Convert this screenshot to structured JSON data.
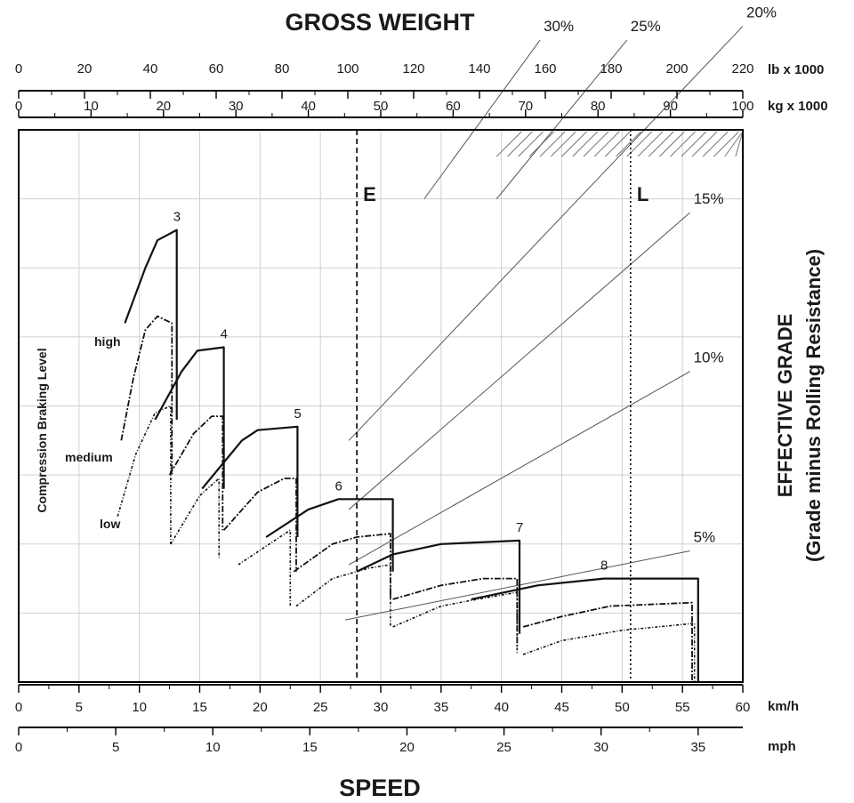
{
  "chart_data": {
    "type": "line",
    "title": "GROSS WEIGHT",
    "xlabel": "SPEED",
    "ylabel": "EFFECTIVE GRADE",
    "ylabel_sub": "(Grade minus Rolling Resistance)",
    "level_axis_label": "Compression Braking Level",
    "axes": {
      "weight_lb": {
        "unit": "lb x 1000",
        "range": [
          0,
          220
        ],
        "ticks": [
          0,
          20,
          40,
          60,
          80,
          100,
          120,
          140,
          160,
          180,
          200,
          220
        ]
      },
      "weight_kg": {
        "unit": "kg x 1000",
        "range": [
          0,
          100
        ],
        "ticks": [
          0,
          10,
          20,
          30,
          40,
          50,
          60,
          70,
          80,
          90,
          100
        ]
      },
      "speed_kmh": {
        "unit": "km/h",
        "range": [
          0,
          60
        ],
        "ticks": [
          0,
          5,
          10,
          15,
          20,
          25,
          30,
          35,
          40,
          45,
          50,
          55,
          60
        ]
      },
      "speed_mph": {
        "unit": "mph",
        "range": [
          0,
          37.3
        ],
        "ticks": [
          0,
          5,
          10,
          15,
          20,
          25,
          30,
          35
        ]
      }
    },
    "grid": true,
    "reference_lines": [
      {
        "label": "E",
        "weight_kg": 46.7,
        "style": "dashed"
      },
      {
        "label": "L",
        "weight_kg": 84.5,
        "style": "dotted"
      }
    ],
    "grade_lines": [
      {
        "label": "30%",
        "from": [
          56,
          70
        ],
        "to": [
          72,
          93
        ]
      },
      {
        "label": "25%",
        "from": [
          66,
          70
        ],
        "to": [
          84,
          93
        ]
      },
      {
        "label": "20%",
        "from": [
          45.6,
          35
        ],
        "to": [
          100,
          95
        ]
      },
      {
        "label": "15%",
        "from": [
          45.6,
          25
        ],
        "to": [
          92.7,
          68
        ]
      },
      {
        "label": "10%",
        "from": [
          45.6,
          17
        ],
        "to": [
          92.7,
          45
        ]
      },
      {
        "label": "5%",
        "from": [
          45.1,
          9
        ],
        "to": [
          92.7,
          19
        ]
      }
    ],
    "braking_levels": [
      "high",
      "medium",
      "low"
    ],
    "gears": [
      {
        "label": "3",
        "high": [
          [
            8.8,
            52
          ],
          [
            10.5,
            60
          ],
          [
            11.5,
            64
          ],
          [
            13.1,
            65.5
          ],
          [
            13.1,
            38
          ]
        ],
        "medium": [
          [
            8.5,
            35
          ],
          [
            9.5,
            44
          ],
          [
            10.5,
            51
          ],
          [
            11.5,
            53
          ],
          [
            12.7,
            52
          ],
          [
            12.7,
            30
          ]
        ],
        "low": [
          [
            8.2,
            24
          ],
          [
            9.7,
            33
          ],
          [
            11.3,
            39
          ],
          [
            12.6,
            40
          ],
          [
            12.6,
            20
          ]
        ]
      },
      {
        "label": "4",
        "high": [
          [
            11.3,
            38
          ],
          [
            13.5,
            45
          ],
          [
            14.8,
            48
          ],
          [
            17.0,
            48.5
          ],
          [
            17.0,
            28
          ]
        ],
        "medium": [
          [
            12.5,
            30
          ],
          [
            14.5,
            36
          ],
          [
            16.0,
            38.5
          ],
          [
            16.9,
            38.5
          ],
          [
            16.9,
            22
          ]
        ],
        "low": [
          [
            12.6,
            20
          ],
          [
            15.0,
            27
          ],
          [
            16.6,
            29.5
          ],
          [
            16.6,
            18
          ]
        ]
      },
      {
        "label": "5",
        "high": [
          [
            15.2,
            28
          ],
          [
            18.5,
            35
          ],
          [
            19.8,
            36.5
          ],
          [
            23.1,
            37
          ],
          [
            23.1,
            21
          ]
        ],
        "medium": [
          [
            17.0,
            22
          ],
          [
            19.8,
            27.5
          ],
          [
            22.0,
            29.5
          ],
          [
            23.0,
            29.5
          ],
          [
            23.0,
            16
          ]
        ],
        "low": [
          [
            18.2,
            17
          ],
          [
            22.5,
            22
          ],
          [
            22.5,
            11
          ]
        ]
      },
      {
        "label": "6",
        "high": [
          [
            20.5,
            21
          ],
          [
            24.0,
            25
          ],
          [
            26.5,
            26.5
          ],
          [
            31.0,
            26.5
          ],
          [
            31.0,
            16
          ]
        ],
        "medium": [
          [
            22.8,
            16
          ],
          [
            26.0,
            20
          ],
          [
            28.0,
            21
          ],
          [
            30.8,
            21.5
          ],
          [
            30.8,
            12
          ]
        ],
        "low": [
          [
            23.0,
            11
          ],
          [
            26.0,
            15
          ],
          [
            29.0,
            16.5
          ],
          [
            30.8,
            17
          ],
          [
            30.8,
            8
          ]
        ]
      },
      {
        "label": "7",
        "high": [
          [
            28.0,
            16
          ],
          [
            31.0,
            18.5
          ],
          [
            35.0,
            20
          ],
          [
            41.5,
            20.5
          ],
          [
            41.5,
            7
          ]
        ],
        "medium": [
          [
            31.0,
            12
          ],
          [
            35.0,
            14
          ],
          [
            38.5,
            15
          ],
          [
            41.3,
            15
          ],
          [
            41.3,
            5
          ]
        ],
        "low": [
          [
            31.0,
            8
          ],
          [
            35.0,
            11
          ],
          [
            38.0,
            12
          ],
          [
            41.3,
            13
          ],
          [
            41.3,
            4
          ]
        ]
      },
      {
        "label": "8",
        "high": [
          [
            37.5,
            12
          ],
          [
            43.0,
            14
          ],
          [
            48.5,
            15
          ],
          [
            56.3,
            15
          ],
          [
            56.3,
            0
          ]
        ],
        "medium": [
          [
            41.8,
            8
          ],
          [
            45.0,
            9.5
          ],
          [
            49.0,
            11
          ],
          [
            55.8,
            11.5
          ],
          [
            55.8,
            0
          ]
        ],
        "low": [
          [
            41.8,
            4
          ],
          [
            45.0,
            6
          ],
          [
            50.0,
            7.5
          ],
          [
            56.0,
            8.5
          ],
          [
            56.0,
            0
          ]
        ]
      }
    ]
  }
}
